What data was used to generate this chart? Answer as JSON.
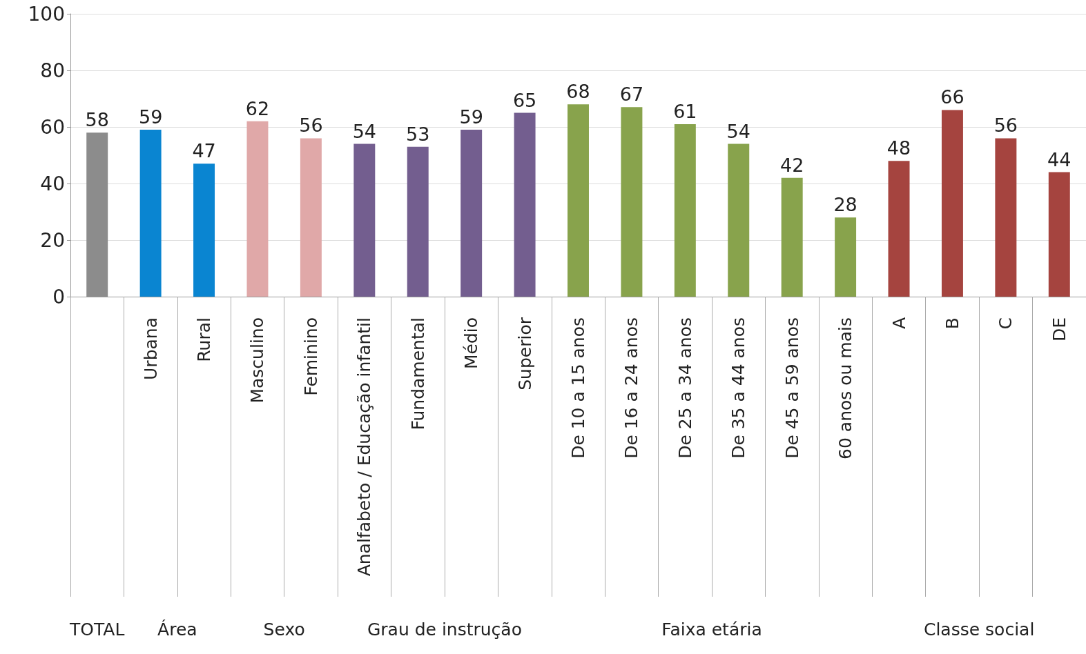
{
  "chart_data": {
    "type": "bar",
    "categories": [
      null,
      "Urbana",
      "Rural",
      "Masculino",
      "Feminino",
      "Analfabeto / Educação infantil",
      "Fundamental",
      "Médio",
      "Superior",
      "De 10 a 15 anos",
      "De 16 a 24 anos",
      "De 25 a 34 anos",
      "De 35 a 44 anos",
      "De 45 a 59 anos",
      "60 anos ou mais",
      "A",
      "B",
      "C",
      "DE"
    ],
    "values": [
      58,
      59,
      47,
      62,
      56,
      54,
      53,
      59,
      65,
      68,
      67,
      61,
      54,
      42,
      28,
      48,
      66,
      56,
      44
    ],
    "colors": [
      "#8c8c8c",
      "#0a85d1",
      "#0a85d1",
      "#e0a8a8",
      "#e0a8a8",
      "#735e8f",
      "#735e8f",
      "#735e8f",
      "#735e8f",
      "#88a34c",
      "#88a34c",
      "#88a34c",
      "#88a34c",
      "#88a34c",
      "#88a34c",
      "#a5443f",
      "#a5443f",
      "#a5443f",
      "#a5443f"
    ],
    "ylim": [
      0,
      100
    ],
    "yticks": [
      0,
      20,
      40,
      60,
      80,
      100
    ],
    "grid": "y",
    "data_labels": true,
    "annotations": [
      "TOTAL",
      "Área",
      "Sexo",
      "Grau de instrução",
      "Faixa etária",
      "Classe social"
    ]
  }
}
